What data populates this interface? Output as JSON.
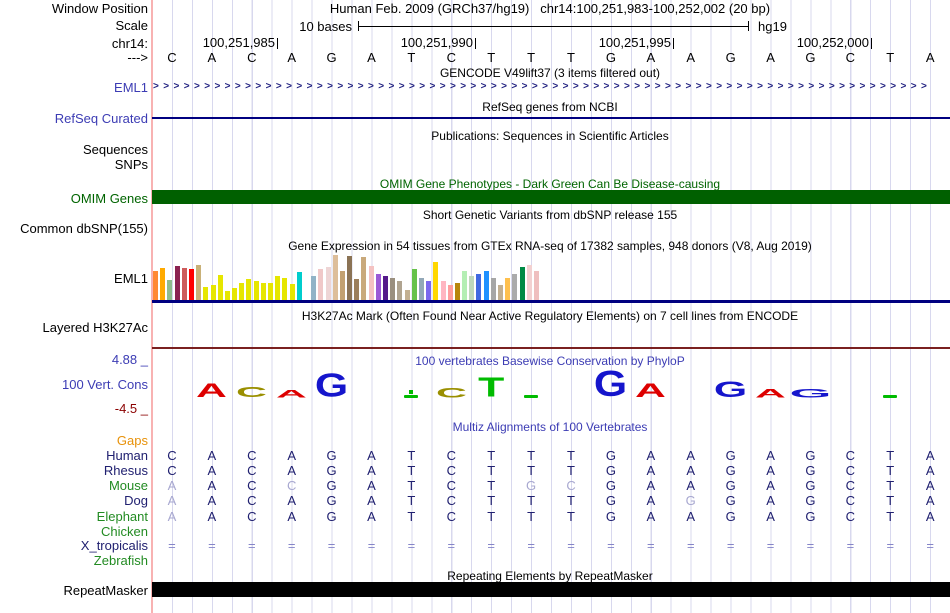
{
  "header": {
    "window_position_label": "Window Position",
    "assembly_text": "Human Feb. 2009 (GRCh37/hg19)",
    "position_text": "chr14:100,251,983-100,252,002 (20 bp)",
    "scale_label": "Scale",
    "scale_value": "10 bases",
    "assembly_short": "hg19",
    "chrom_label": "chr14:",
    "coordinate_ticks": [
      "100,251,985",
      "100,251,990",
      "100,251,995",
      "100,252,000"
    ],
    "strand_label": "--->",
    "sequence": [
      "C",
      "A",
      "C",
      "A",
      "G",
      "A",
      "T",
      "C",
      "T",
      "T",
      "T",
      "G",
      "A",
      "A",
      "G",
      "A",
      "G",
      "C",
      "T",
      "A"
    ]
  },
  "gencode": {
    "title": "GENCODE V49lift37 (3 items filtered out)",
    "gene_label": "EML1",
    "arrow_char": ">",
    "arrow_count": 76
  },
  "refseq": {
    "title": "RefSeq genes from NCBI",
    "label": "RefSeq Curated",
    "line_color": "#000080"
  },
  "publications": {
    "title": "Publications: Sequences in Scientific Articles",
    "labels": [
      "Sequences",
      "SNPs"
    ]
  },
  "omim": {
    "title": "OMIM Gene Phenotypes - Dark Green Can Be Disease-causing",
    "label": "OMIM Genes",
    "bar_color": "#006000"
  },
  "dbsnp": {
    "title": "Short Genetic Variants from dbSNP release 155",
    "label": "Common dbSNP(155)"
  },
  "gtex": {
    "title": "Gene Expression in 54 tissues from GTEx RNA-seq of 17382 samples, 948 donors (V8, Aug 2019)",
    "label": "EML1",
    "axis_color": "#000080",
    "bars": [
      {
        "c": "#FF8833",
        "h": 29
      },
      {
        "c": "#FFAA00",
        "h": 32
      },
      {
        "c": "#8FBC8F",
        "h": 20
      },
      {
        "c": "#8B2252",
        "h": 34
      },
      {
        "c": "#CD5C5C",
        "h": 32
      },
      {
        "c": "#FF0000",
        "h": 31
      },
      {
        "c": "#C9B178",
        "h": 35
      },
      {
        "c": "#E6E600",
        "h": 13
      },
      {
        "c": "#E6E600",
        "h": 15
      },
      {
        "c": "#E6E600",
        "h": 25
      },
      {
        "c": "#E6E600",
        "h": 9
      },
      {
        "c": "#E6E600",
        "h": 12
      },
      {
        "c": "#E6E600",
        "h": 17
      },
      {
        "c": "#E6E600",
        "h": 21
      },
      {
        "c": "#E6E600",
        "h": 19
      },
      {
        "c": "#E6E600",
        "h": 17
      },
      {
        "c": "#E6E600",
        "h": 17
      },
      {
        "c": "#E6E600",
        "h": 24
      },
      {
        "c": "#E6E600",
        "h": 22
      },
      {
        "c": "#E6E600",
        "h": 16
      },
      {
        "c": "#00CDCD",
        "h": 28
      },
      {
        "c": "#EE82EE",
        "h": 0
      },
      {
        "c": "#91B3C7",
        "h": 24
      },
      {
        "c": "#F0C8C8",
        "h": 31
      },
      {
        "c": "#EED5D5",
        "h": 33
      },
      {
        "c": "#DDBE9A",
        "h": 45
      },
      {
        "c": "#C3A171",
        "h": 29
      },
      {
        "c": "#8B7355",
        "h": 44
      },
      {
        "c": "#9C7F5C",
        "h": 21
      },
      {
        "c": "#C9A97B",
        "h": 43
      },
      {
        "c": "#F4C2C2",
        "h": 34
      },
      {
        "c": "#9B59D6",
        "h": 26
      },
      {
        "c": "#551A8B",
        "h": 24
      },
      {
        "c": "#9A8F7F",
        "h": 22
      },
      {
        "c": "#B0A490",
        "h": 19
      },
      {
        "c": "#C3B091",
        "h": 10
      },
      {
        "c": "#66C24A",
        "h": 31
      },
      {
        "c": "#93A8B8",
        "h": 22
      },
      {
        "c": "#7B68EE",
        "h": 19
      },
      {
        "c": "#FFD700",
        "h": 38
      },
      {
        "c": "#FFB6C1",
        "h": 19
      },
      {
        "c": "#FF9E9E",
        "h": 15
      },
      {
        "c": "#B8860B",
        "h": 17
      },
      {
        "c": "#B4EEB4",
        "h": 29
      },
      {
        "c": "#BFD8BC",
        "h": 24
      },
      {
        "c": "#4169E1",
        "h": 26
      },
      {
        "c": "#1E90FF",
        "h": 29
      },
      {
        "c": "#A6A6A6",
        "h": 22
      },
      {
        "c": "#C3B091",
        "h": 15
      },
      {
        "c": "#FFC04D",
        "h": 22
      },
      {
        "c": "#ABABAB",
        "h": 26
      },
      {
        "c": "#008B45",
        "h": 33
      },
      {
        "c": "#F3D1D1",
        "h": 35
      },
      {
        "c": "#EFBFBF",
        "h": 29
      }
    ]
  },
  "h3k27ac": {
    "title": "H3K27Ac Mark (Often Found Near Active Regulatory Elements) on 7 cell lines from ENCODE",
    "label": "Layered H3K27Ac",
    "baseline_color": "#7a2020"
  },
  "phylop": {
    "title": "100 vertebrates Basewise Conservation by PhyloP",
    "label": "100 Vert. Cons",
    "max_label": "4.88 _",
    "min_label": "-4.5 _",
    "logo": [
      null,
      {
        "l": "A",
        "c": "#dd0000",
        "h": 14
      },
      {
        "l": "C",
        "c": "#9a8f00",
        "h": 11
      },
      {
        "l": "A",
        "c": "#dd0000",
        "h": 8
      },
      {
        "l": "G",
        "c": "#1515cc",
        "h": 24
      },
      null,
      {
        "dash": true,
        "c": "#00bb00",
        "dot": true
      },
      {
        "l": "C",
        "c": "#9a8f00",
        "h": 10
      },
      {
        "l": "T",
        "c": "#00bb00",
        "h": 20
      },
      {
        "dash": true,
        "c": "#00bb00"
      },
      null,
      {
        "l": "G",
        "c": "#1515cc",
        "h": 26
      },
      {
        "l": "A",
        "c": "#dd0000",
        "h": 14
      },
      null,
      {
        "l": "G",
        "c": "#1515cc",
        "h": 16
      },
      {
        "l": "A",
        "c": "#dd0000",
        "h": 9
      },
      {
        "l": "G",
        "c": "#1515cc",
        "h": 9,
        "wide": true
      },
      null,
      {
        "dash": true,
        "c": "#00bb00"
      },
      null
    ]
  },
  "multiz": {
    "title": "Multiz Alignments of 100 Vertebrates",
    "rows": [
      {
        "label": "Gaps",
        "color": "#e8920a",
        "cells": "",
        "faded": []
      },
      {
        "label": "Human",
        "color": "#202070",
        "cells": "CACAGATCTTTGAAGAGCTA",
        "faded": []
      },
      {
        "label": "Rhesus",
        "color": "#202070",
        "cells": "CACAGATCTTTGAAGAGCTA",
        "faded": []
      },
      {
        "label": "Mouse",
        "color": "#228B22",
        "cells": "AACCGATCTGCGAAGAGCTA",
        "faded": [
          0,
          3,
          9,
          10
        ]
      },
      {
        "label": "Dog",
        "color": "#202070",
        "cells": "AACAGATCTTTGAGGAGCTA",
        "faded": [
          0,
          13
        ]
      },
      {
        "label": "Elephant",
        "color": "#228B22",
        "cells": "AACAGATCTTTGAAGAGCTA",
        "faded": [
          0
        ]
      },
      {
        "label": "Chicken",
        "color": "#228B22",
        "cells": "",
        "faded": []
      },
      {
        "label": "X_tropicalis",
        "color": "#202070",
        "cells": "====================",
        "faded": [],
        "light": true
      },
      {
        "label": "Zebrafish",
        "color": "#228B22",
        "cells": "",
        "faded": []
      }
    ]
  },
  "repeatmasker": {
    "title": "Repeating Elements by RepeatMasker",
    "label": "RepeatMasker",
    "bar_color": "#000000"
  }
}
